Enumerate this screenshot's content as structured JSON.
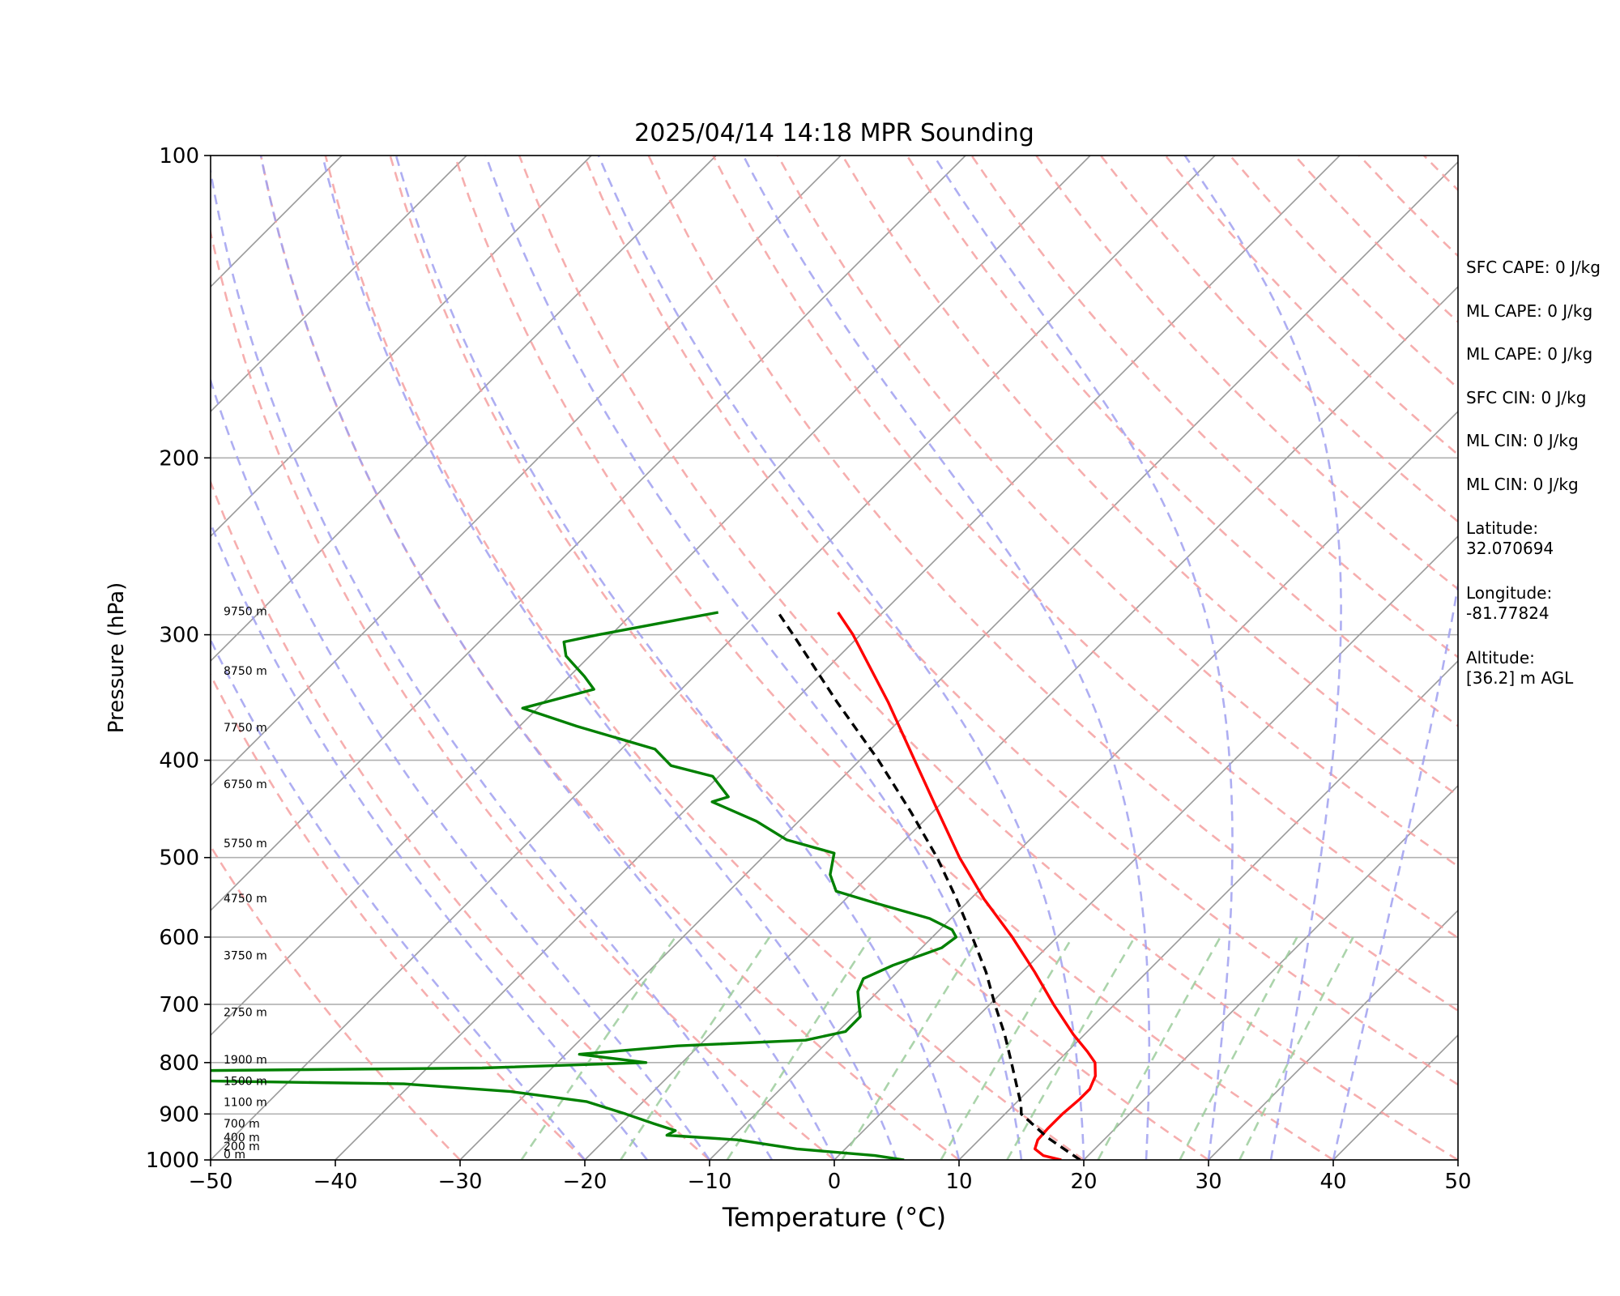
{
  "chart_data": {
    "type": "line",
    "title": "2025/04/14 14:18 MPR Sounding",
    "xlabel": "Temperature (°C)",
    "ylabel": "Pressure (hPa)",
    "xlim": [
      -50,
      50
    ],
    "ylim": [
      1000,
      100
    ],
    "y_scale": "log",
    "x_ticks": [
      -50,
      -40,
      -30,
      -20,
      -10,
      0,
      10,
      20,
      30,
      40,
      50
    ],
    "x_tick_labels": [
      "−50",
      "−40",
      "−30",
      "−20",
      "−10",
      "0",
      "10",
      "20",
      "30",
      "40",
      "50"
    ],
    "y_ticks": [
      1000,
      900,
      800,
      700,
      600,
      500,
      400,
      300,
      200,
      100
    ],
    "y_tick_labels": [
      "1000",
      "900",
      "800",
      "700",
      "600",
      "500",
      "400",
      "300",
      "200",
      "100"
    ],
    "skew_degrees": 45,
    "grid": true,
    "background_lines": {
      "isotherms": {
        "color": "#999999",
        "style": "solid"
      },
      "dry_adiabats": {
        "color": "#f4a0a0",
        "style": "dashed"
      },
      "moist_adiabats": {
        "color": "#a0a0f0",
        "style": "dashed"
      },
      "mixing_ratio_lines": {
        "color": "#9ccc9c",
        "style": "dashed"
      }
    },
    "series": [
      {
        "key": "temperature",
        "color": "#ff0000",
        "points": [
          {
            "p": 1000,
            "t": 18.2
          },
          {
            "p": 990,
            "t": 16.4
          },
          {
            "p": 975,
            "t": 15.2
          },
          {
            "p": 955,
            "t": 14.7
          },
          {
            "p": 930,
            "t": 14.6
          },
          {
            "p": 900,
            "t": 14.6
          },
          {
            "p": 870,
            "t": 14.8
          },
          {
            "p": 850,
            "t": 14.8
          },
          {
            "p": 825,
            "t": 14.2
          },
          {
            "p": 800,
            "t": 13.1
          },
          {
            "p": 780,
            "t": 11.6
          },
          {
            "p": 750,
            "t": 9.1
          },
          {
            "p": 700,
            "t": 5.1
          },
          {
            "p": 650,
            "t": 1.0
          },
          {
            "p": 600,
            "t": -3.6
          },
          {
            "p": 550,
            "t": -8.9
          },
          {
            "p": 500,
            "t": -14.2
          },
          {
            "p": 450,
            "t": -19.6
          },
          {
            "p": 400,
            "t": -25.6
          },
          {
            "p": 350,
            "t": -32.4
          },
          {
            "p": 300,
            "t": -40.6
          },
          {
            "p": 285,
            "t": -43.6
          }
        ]
      },
      {
        "key": "dewpoint",
        "color": "#008000",
        "points": [
          {
            "p": 1000,
            "t": 5.6
          },
          {
            "p": 990,
            "t": 2.9
          },
          {
            "p": 975,
            "t": -3.9
          },
          {
            "p": 955,
            "t": -9.4
          },
          {
            "p": 945,
            "t": -15.4
          },
          {
            "p": 935,
            "t": -15.1
          },
          {
            "p": 920,
            "t": -17.4
          },
          {
            "p": 900,
            "t": -20.4
          },
          {
            "p": 875,
            "t": -24.5
          },
          {
            "p": 855,
            "t": -31.4
          },
          {
            "p": 840,
            "t": -40.6
          },
          {
            "p": 825,
            "t": -84.2
          },
          {
            "p": 822,
            "t": -90.0
          },
          {
            "p": 810,
            "t": -35.6
          },
          {
            "p": 800,
            "t": -22.9
          },
          {
            "p": 785,
            "t": -28.9
          },
          {
            "p": 770,
            "t": -21.7
          },
          {
            "p": 760,
            "t": -11.9
          },
          {
            "p": 745,
            "t": -9.4
          },
          {
            "p": 720,
            "t": -9.4
          },
          {
            "p": 700,
            "t": -10.5
          },
          {
            "p": 680,
            "t": -11.6
          },
          {
            "p": 660,
            "t": -12.2
          },
          {
            "p": 640,
            "t": -10.9
          },
          {
            "p": 615,
            "t": -8.4
          },
          {
            "p": 600,
            "t": -8.1
          },
          {
            "p": 590,
            "t": -9.0
          },
          {
            "p": 575,
            "t": -11.7
          },
          {
            "p": 555,
            "t": -17.3
          },
          {
            "p": 540,
            "t": -21.4
          },
          {
            "p": 520,
            "t": -23.2
          },
          {
            "p": 495,
            "t": -24.6
          },
          {
            "p": 480,
            "t": -29.5
          },
          {
            "p": 460,
            "t": -33.4
          },
          {
            "p": 440,
            "t": -38.5
          },
          {
            "p": 435,
            "t": -37.6
          },
          {
            "p": 415,
            "t": -40.5
          },
          {
            "p": 405,
            "t": -44.7
          },
          {
            "p": 390,
            "t": -47.3
          },
          {
            "p": 370,
            "t": -55.4
          },
          {
            "p": 355,
            "t": -61.2
          },
          {
            "p": 340,
            "t": -57.0
          },
          {
            "p": 330,
            "t": -58.8
          },
          {
            "p": 315,
            "t": -61.9
          },
          {
            "p": 305,
            "t": -63.2
          },
          {
            "p": 300,
            "t": -61.0
          },
          {
            "p": 290,
            "t": -55.9
          },
          {
            "p": 285,
            "t": -53.2
          }
        ]
      },
      {
        "key": "parcel",
        "color": "#000000",
        "style": "dashed",
        "points": [
          {
            "p": 1000,
            "t": 19.7
          },
          {
            "p": 950,
            "t": 15.3
          },
          {
            "p": 900,
            "t": 11.3
          },
          {
            "p": 880,
            "t": 10.5
          },
          {
            "p": 850,
            "t": 9.0
          },
          {
            "p": 800,
            "t": 6.4
          },
          {
            "p": 750,
            "t": 3.6
          },
          {
            "p": 700,
            "t": 0.4
          },
          {
            "p": 650,
            "t": -2.9
          },
          {
            "p": 600,
            "t": -6.8
          },
          {
            "p": 550,
            "t": -11.1
          },
          {
            "p": 500,
            "t": -16.0
          },
          {
            "p": 450,
            "t": -21.8
          },
          {
            "p": 400,
            "t": -28.5
          },
          {
            "p": 350,
            "t": -36.5
          },
          {
            "p": 300,
            "t": -45.4
          },
          {
            "p": 285,
            "t": -48.4
          }
        ]
      }
    ],
    "height_labels": [
      {
        "text": "0 m",
        "p": 1000
      },
      {
        "text": "200 m",
        "p": 982
      },
      {
        "text": "400 m",
        "p": 962
      },
      {
        "text": "700 m",
        "p": 932
      },
      {
        "text": "1100 m",
        "p": 887
      },
      {
        "text": "1500 m",
        "p": 845
      },
      {
        "text": "1900 m",
        "p": 805
      },
      {
        "text": "2750 m",
        "p": 722
      },
      {
        "text": "3750 m",
        "p": 634
      },
      {
        "text": "4750 m",
        "p": 556
      },
      {
        "text": "5750 m",
        "p": 490
      },
      {
        "text": "6750 m",
        "p": 428
      },
      {
        "text": "7750 m",
        "p": 376
      },
      {
        "text": "8750 m",
        "p": 330
      },
      {
        "text": "9750 m",
        "p": 288
      }
    ]
  },
  "side_panel": [
    "SFC CAPE: 0 J/kg",
    "ML CAPE: 0 J/kg",
    "ML CAPE: 0 J/kg",
    "SFC CIN: 0 J/kg",
    "ML CIN: 0 J/kg",
    "ML CIN: 0 J/kg",
    "Latitude:\n32.070694",
    "Longitude:\n-81.77824",
    "Altitude:\n[36.2] m AGL"
  ]
}
